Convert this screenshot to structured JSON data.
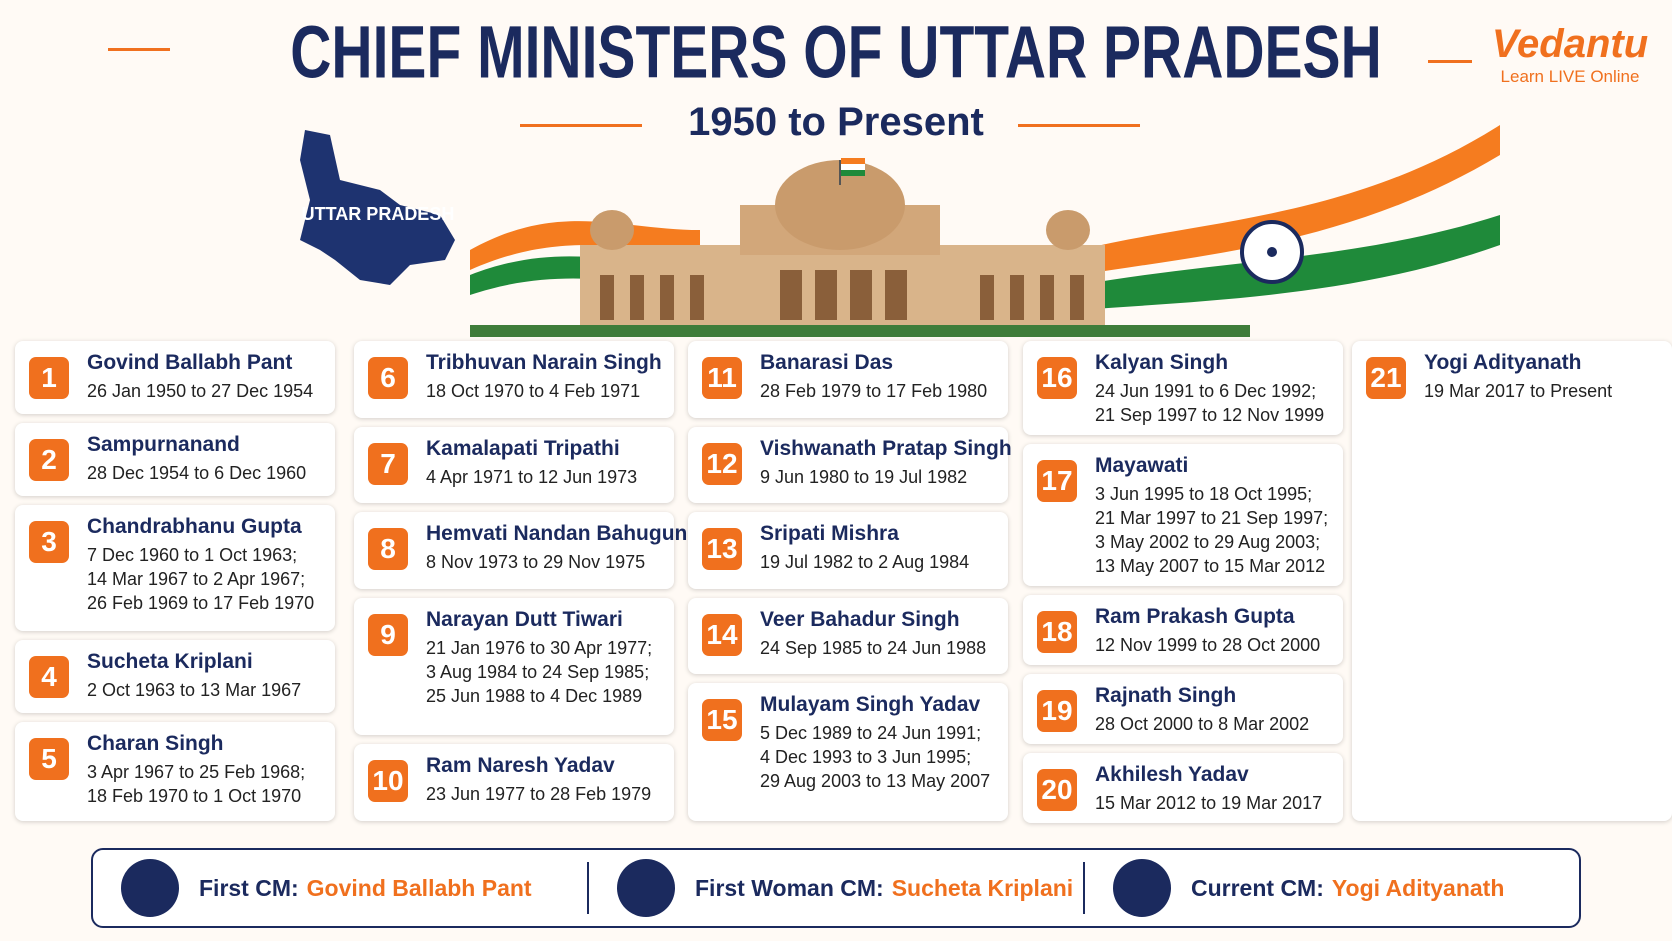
{
  "header": {
    "title": "CHIEF MINISTERS OF UTTAR PRADESH",
    "subtitle": "1950 to Present"
  },
  "brand": {
    "name": "Vedantu",
    "tagline": "Learn LIVE Online"
  },
  "map_label": "UTTAR PRADESH",
  "columns": [
    [
      {
        "number": 1,
        "name": "Govind Ballabh Pant",
        "terms": [
          "26 Jan 1950 to 27 Dec 1954"
        ]
      },
      {
        "number": 2,
        "name": "Sampurnanand",
        "terms": [
          "28 Dec 1954 to 6 Dec 1960"
        ]
      },
      {
        "number": 3,
        "name": "Chandrabhanu Gupta",
        "terms": [
          "7 Dec 1960 to 1 Oct 1963;",
          "14 Mar 1967 to 2 Apr 1967;",
          "26 Feb 1969 to 17 Feb 1970"
        ]
      },
      {
        "number": 4,
        "name": "Sucheta Kriplani",
        "terms": [
          "2 Oct 1963 to 13 Mar 1967"
        ]
      },
      {
        "number": 5,
        "name": "Charan Singh",
        "terms": [
          "3 Apr 1967 to 25 Feb 1968;",
          "18 Feb 1970 to 1 Oct 1970"
        ]
      }
    ],
    [
      {
        "number": 6,
        "name": "Tribhuvan Narain Singh",
        "terms": [
          "18 Oct 1970 to 4 Feb 1971"
        ]
      },
      {
        "number": 7,
        "name": "Kamalapati Tripathi",
        "terms": [
          "4 Apr 1971 to 12 Jun 1973"
        ]
      },
      {
        "number": 8,
        "name": "Hemvati Nandan Bahuguna",
        "terms": [
          "8 Nov 1973 to 29 Nov 1975"
        ]
      },
      {
        "number": 9,
        "name": "Narayan Dutt Tiwari",
        "terms": [
          "21 Jan 1976 to 30 Apr 1977;",
          "3 Aug 1984 to 24 Sep 1985;",
          "25 Jun 1988 to 4 Dec 1989"
        ]
      },
      {
        "number": 10,
        "name": "Ram Naresh Yadav",
        "terms": [
          "23 Jun 1977 to 28 Feb 1979"
        ]
      }
    ],
    [
      {
        "number": 11,
        "name": "Banarasi Das",
        "terms": [
          "28 Feb 1979 to 17 Feb 1980"
        ]
      },
      {
        "number": 12,
        "name": "Vishwanath Pratap Singh",
        "terms": [
          "9 Jun 1980 to 19 Jul 1982"
        ]
      },
      {
        "number": 13,
        "name": "Sripati Mishra",
        "terms": [
          "19 Jul 1982 to 2 Aug 1984"
        ]
      },
      {
        "number": 14,
        "name": "Veer Bahadur Singh",
        "terms": [
          "24 Sep 1985 to 24 Jun 1988"
        ]
      },
      {
        "number": 15,
        "name": "Mulayam Singh Yadav",
        "terms": [
          "5 Dec 1989 to 24 Jun 1991;",
          "4 Dec 1993 to 3 Jun 1995;",
          "29 Aug 2003 to 13 May 2007"
        ]
      }
    ],
    [
      {
        "number": 16,
        "name": "Kalyan Singh",
        "terms": [
          "24 Jun 1991 to 6 Dec 1992;",
          "21 Sep 1997 to 12 Nov 1999"
        ]
      },
      {
        "number": 17,
        "name": "Mayawati",
        "terms": [
          "3 Jun 1995 to 18 Oct 1995;",
          "21 Mar 1997 to 21 Sep 1997;",
          "3 May 2002 to 29 Aug 2003;",
          "13 May 2007 to 15 Mar 2012"
        ]
      },
      {
        "number": 18,
        "name": "Ram Prakash Gupta",
        "terms": [
          "12 Nov 1999 to 28 Oct 2000"
        ]
      },
      {
        "number": 19,
        "name": "Rajnath Singh",
        "terms": [
          "28 Oct 2000 to 8 Mar 2002"
        ]
      },
      {
        "number": 20,
        "name": "Akhilesh Yadav",
        "terms": [
          "15 Mar 2012 to 19 Mar 2017"
        ]
      }
    ],
    [
      {
        "number": 21,
        "name": "Yogi Adityanath",
        "terms": [
          "19 Mar 2017 to Present"
        ]
      }
    ]
  ],
  "footer": [
    {
      "label": "First CM:",
      "value": "Govind Ballabh Pant"
    },
    {
      "label": "First Woman CM:",
      "value": "Sucheta Kriplani"
    },
    {
      "label": "Current CM:",
      "value": "Yogi Adityanath"
    }
  ]
}
